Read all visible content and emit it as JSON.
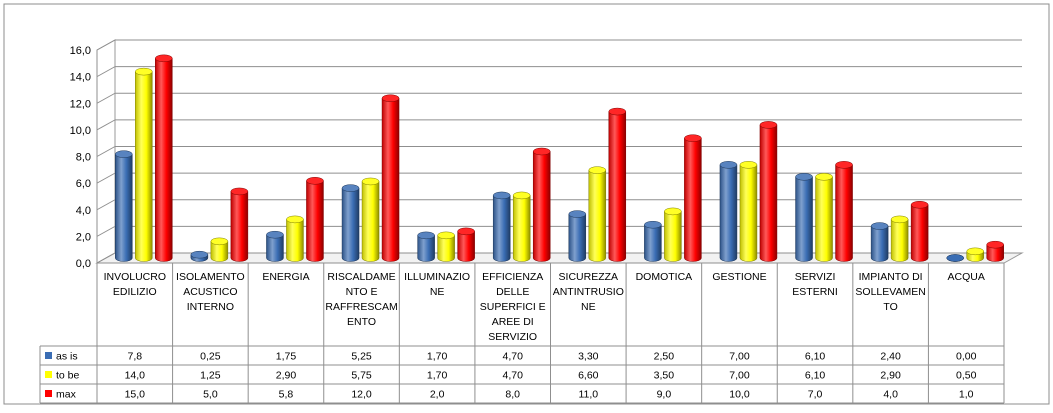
{
  "chart_data": {
    "type": "bar",
    "title": "",
    "xlabel": "",
    "ylabel": "",
    "ylim": [
      0,
      16
    ],
    "y_ticks": [
      "0,0",
      "2,0",
      "4,0",
      "6,0",
      "8,0",
      "10,0",
      "12,0",
      "14,0",
      "16,0"
    ],
    "grid": true,
    "style": "3d-cylinder",
    "categories": [
      [
        "INVOLUCRO",
        "EDILIZIO"
      ],
      [
        "ISOLAMENTO",
        "ACUSTICO",
        "INTERNO"
      ],
      [
        "ENERGIA"
      ],
      [
        "RISCALDAME",
        "NTO E",
        "RAFFRESCAM",
        "ENTO"
      ],
      [
        "ILLUMINAZIO",
        "NE"
      ],
      [
        "EFFICIENZA",
        "DELLE",
        "SUPERFICI E",
        "AREE DI",
        "SERVIZIO"
      ],
      [
        "SICUREZZA",
        "ANTINTRUSIO",
        "NE"
      ],
      [
        "DOMOTICA"
      ],
      [
        "GESTIONE"
      ],
      [
        "SERVIZI",
        "ESTERNI"
      ],
      [
        "IMPIANTO DI",
        "SOLLEVAMEN",
        "TO"
      ],
      [
        "ACQUA"
      ]
    ],
    "series": [
      {
        "name": "as is",
        "color": "#3a6db4",
        "values": [
          7.8,
          0.25,
          1.75,
          5.25,
          1.7,
          4.7,
          3.3,
          2.5,
          7.0,
          6.1,
          2.4,
          0.0
        ],
        "labels": [
          "7,8",
          "0,25",
          "1,75",
          "5,25",
          "1,70",
          "4,70",
          "3,30",
          "2,50",
          "7,00",
          "6,10",
          "2,40",
          "0,00"
        ]
      },
      {
        "name": "to be",
        "color": "#ffff00",
        "values": [
          14.0,
          1.25,
          2.9,
          5.75,
          1.7,
          4.7,
          6.6,
          3.5,
          7.0,
          6.1,
          2.9,
          0.5
        ],
        "labels": [
          "14,0",
          "1,25",
          "2,90",
          "5,75",
          "1,70",
          "4,70",
          "6,60",
          "3,50",
          "7,00",
          "6,10",
          "2,90",
          "0,50"
        ]
      },
      {
        "name": "max",
        "color": "#ff0000",
        "values": [
          15.0,
          5.0,
          5.8,
          12.0,
          2.0,
          8.0,
          11.0,
          9.0,
          10.0,
          7.0,
          4.0,
          1.0
        ],
        "labels": [
          "15,0",
          "5,0",
          "5,8",
          "12,0",
          "2,0",
          "8,0",
          "11,0",
          "9,0",
          "10,0",
          "7,0",
          "4,0",
          "1,0"
        ]
      }
    ]
  }
}
